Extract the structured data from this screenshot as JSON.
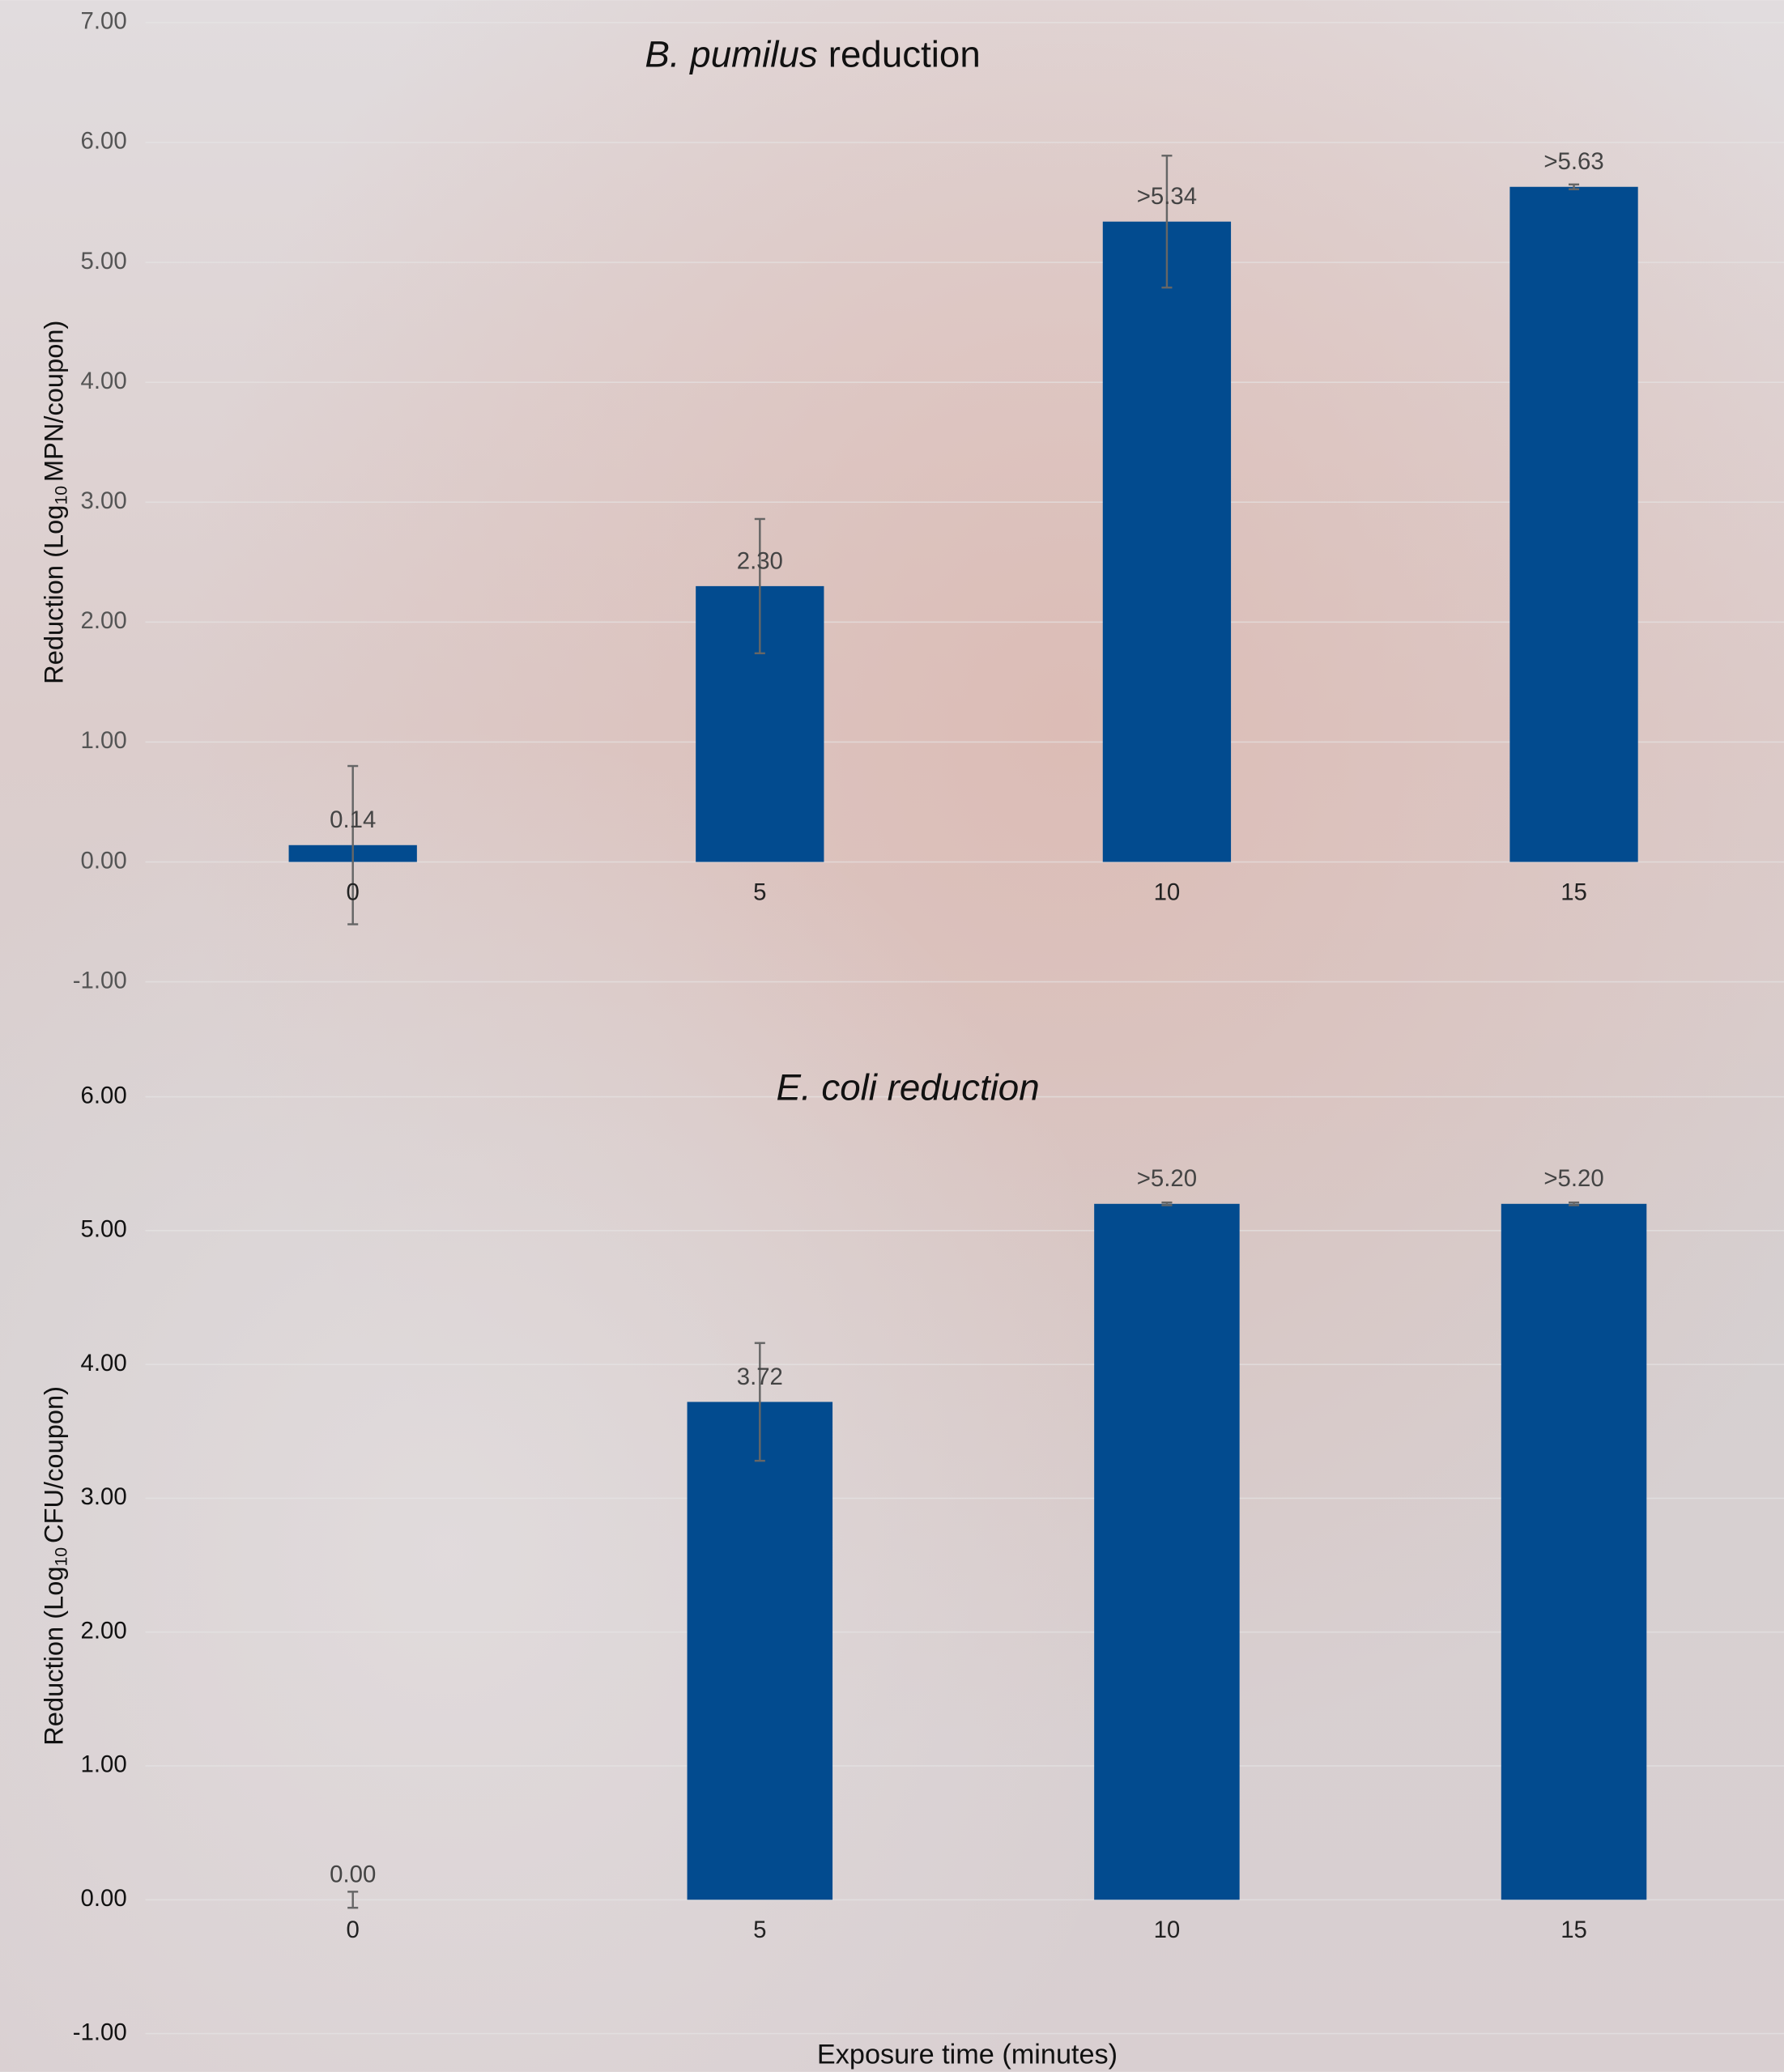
{
  "chart_data": [
    {
      "type": "bar",
      "title": [
        "B. pumilus",
        "reduction"
      ],
      "ylabel": [
        "Reduction (Log",
        "10",
        "MPN/coupon)"
      ],
      "categories": [
        "0",
        "5",
        "10",
        "15"
      ],
      "values": [
        0.14,
        2.3,
        5.34,
        5.63
      ],
      "value_labels": [
        "0.14",
        "2.30",
        ">5.34",
        ">5.63"
      ],
      "errors": [
        0.66,
        0.56,
        0.55,
        0.02
      ],
      "color": "#024b8f",
      "ylim": [
        -1,
        7
      ],
      "yticks": [
        {
          "value": -1,
          "label": "-1.00"
        },
        {
          "value": 0,
          "label": "0.00"
        },
        {
          "value": 1,
          "label": "1.00"
        },
        {
          "value": 2,
          "label": "2.00"
        },
        {
          "value": 3,
          "label": "3.00"
        },
        {
          "value": 4,
          "label": "4.00"
        },
        {
          "value": 5,
          "label": "5.00"
        },
        {
          "value": 6,
          "label": "6.00"
        },
        {
          "value": 7,
          "label": "7.00"
        }
      ],
      "grid": true
    },
    {
      "type": "bar",
      "title": [
        "E. coli reduction"
      ],
      "ylabel": [
        "Reduction (Log",
        "10",
        "CFU/coupon)"
      ],
      "xlabel": "Exposure time (minutes)",
      "categories": [
        "0",
        "5",
        "10",
        "15"
      ],
      "values": [
        0.0,
        3.72,
        5.2,
        5.2
      ],
      "value_labels": [
        "0.00",
        "3.72",
        ">5.20",
        ">5.20"
      ],
      "errors": [
        0.06,
        0.44,
        0.01,
        0.01
      ],
      "color": "#024b8f",
      "ylim": [
        -1,
        6
      ],
      "yticks": [
        {
          "value": -1,
          "label": "-1.00"
        },
        {
          "value": 0,
          "label": "0.00"
        },
        {
          "value": 1,
          "label": "1.00"
        },
        {
          "value": 2,
          "label": "2.00"
        },
        {
          "value": 3,
          "label": "3.00"
        },
        {
          "value": 4,
          "label": "4.00"
        },
        {
          "value": 5,
          "label": "5.00"
        },
        {
          "value": 6,
          "label": "6.00"
        }
      ],
      "grid": true
    }
  ]
}
